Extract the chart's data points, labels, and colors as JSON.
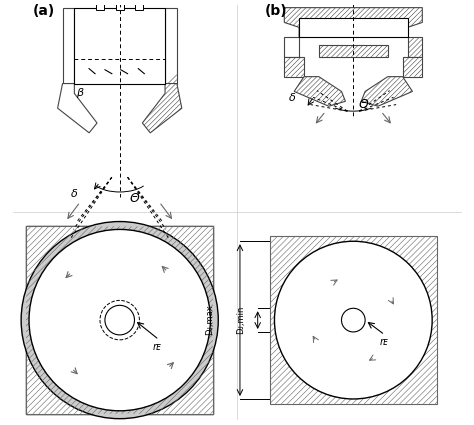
{
  "fig_width": 4.74,
  "fig_height": 4.25,
  "dpi": 100,
  "bg_color": "#ffffff",
  "hatch_color": "#888888",
  "line_color": "#000000",
  "arrow_color": "#666666",
  "label_a": "(a)",
  "label_b": "(b)",
  "label_beta": "β",
  "label_delta": "δ",
  "label_theta": "Θ",
  "label_rE": "rᴇ",
  "label_DKmax": "Dᴊ,max",
  "label_DKmin": "Dᴊ,min"
}
